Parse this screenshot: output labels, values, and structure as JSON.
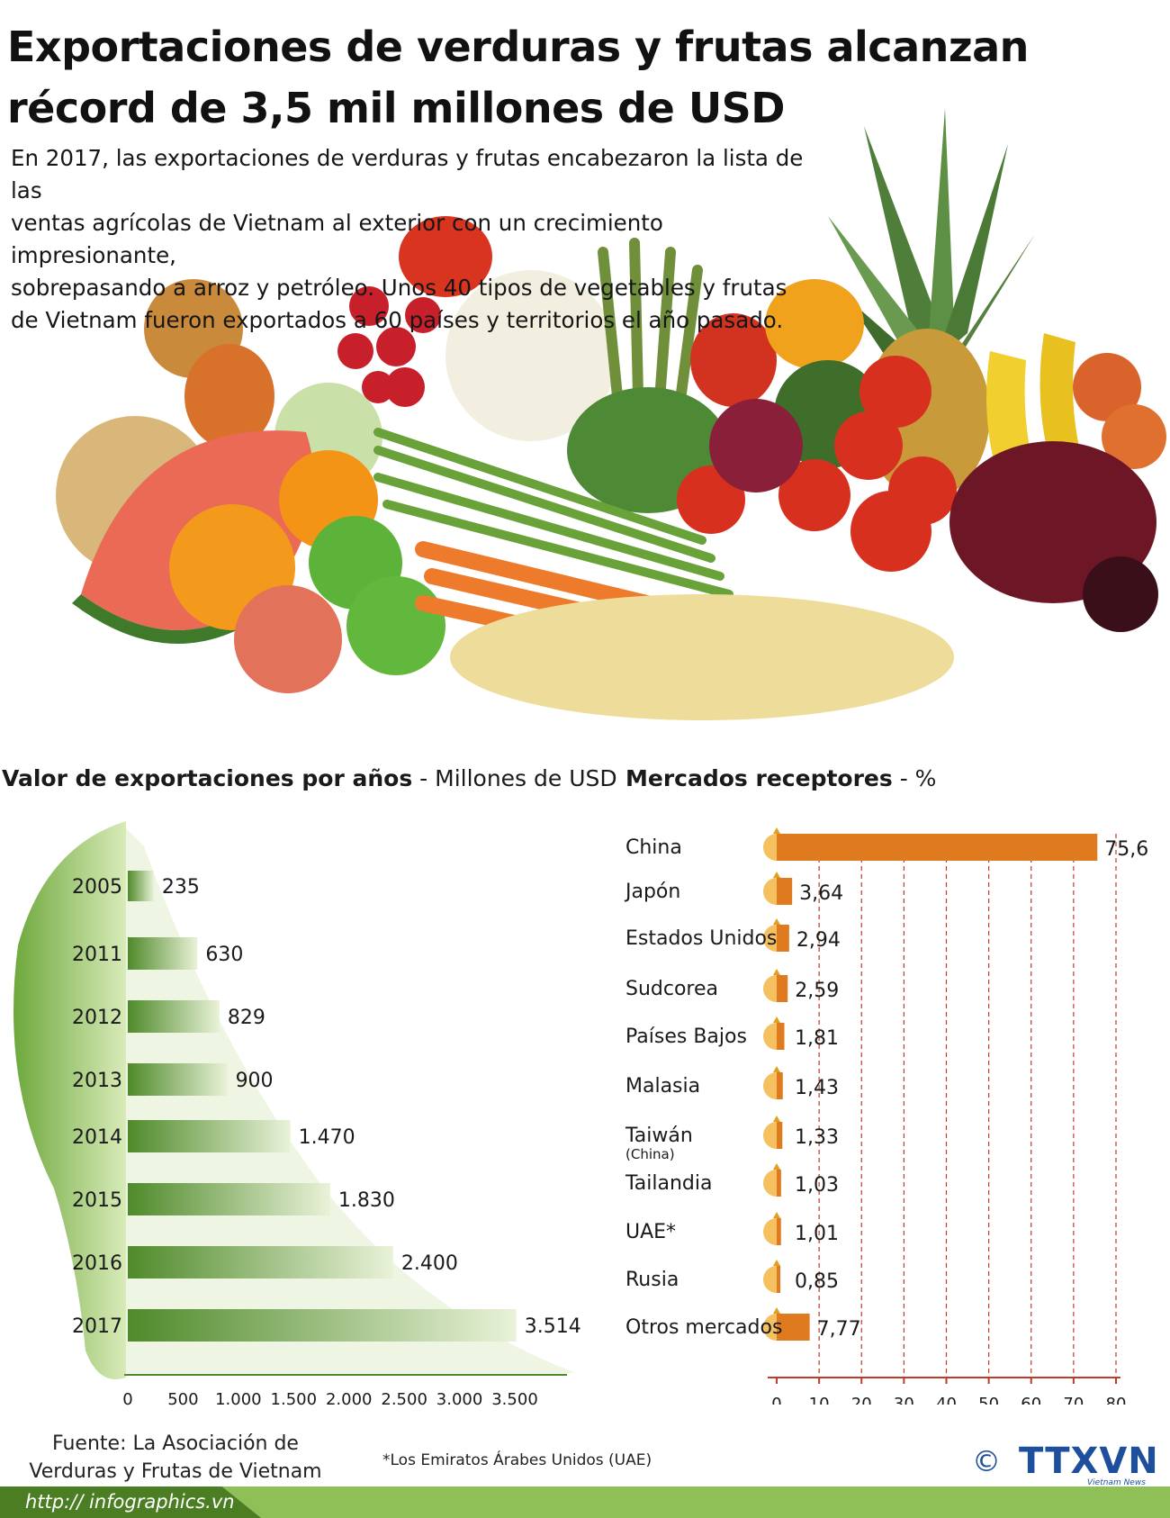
{
  "header": {
    "title_line1": "Exportaciones de verduras y frutas alcanzan",
    "title_line2": "récord de 3,5 mil millones de USD",
    "intro_lines": [
      "En 2017, las exportaciones de verduras y frutas  encabezaron  la lista de las",
      "ventas agrícolas de Vietnam al exterior con un crecimiento impresionante,",
      "sobrepasando a arroz y petróleo. Unos 40 tipos de vegetables y frutas",
      "de Vietnam fueron exportados a 60 países y territorios el año pasado."
    ]
  },
  "colors": {
    "green_dark": "#4f8a2a",
    "green_light": "#e9f2d8",
    "orange": "#e07a1f",
    "orange_light": "#f5c060",
    "red_axis": "#c0392b",
    "footer_green": "#8fbf57",
    "footer_dark": "#4b7d23",
    "logo_blue": "#1d4f9c"
  },
  "chart_data": [
    {
      "type": "bar",
      "orientation": "horizontal",
      "title_bold": "Valor de exportaciones por años",
      "title_unit": " - Millones de USD",
      "categories": [
        "2005",
        "2011",
        "2012",
        "2013",
        "2014",
        "2015",
        "2016",
        "2017"
      ],
      "values": [
        235,
        630,
        829,
        900,
        1470,
        1830,
        2400,
        3514
      ],
      "value_labels": [
        "235",
        "630",
        "829",
        "900",
        "1.470",
        "1.830",
        "2.400",
        "3.514"
      ],
      "xlim": [
        0,
        3500
      ],
      "xticks": [
        0,
        500,
        1000,
        1500,
        2000,
        2500,
        3000,
        3500
      ],
      "xtick_labels": [
        "0",
        "500",
        "1.000",
        "1.500",
        "2.000",
        "2.500",
        "3.000",
        "3.500"
      ]
    },
    {
      "type": "bar",
      "orientation": "horizontal",
      "title_bold": "Mercados receptores",
      "title_unit": " - %",
      "categories": [
        "China",
        "Japón",
        "Estados Unidos",
        "Sudcorea",
        "Países Bajos",
        "Malasia",
        "Taiwán",
        "Tailandia",
        "UAE*",
        "Rusia",
        "Otros mercados"
      ],
      "category_sublabels": [
        "",
        "",
        "",
        "",
        "",
        "",
        "(China)",
        "",
        "",
        "",
        ""
      ],
      "values": [
        75.6,
        3.64,
        2.94,
        2.59,
        1.81,
        1.43,
        1.33,
        1.03,
        1.01,
        0.85,
        7.77
      ],
      "value_labels": [
        "75,6",
        "3,64",
        "2,94",
        "2,59",
        "1,81",
        "1,43",
        "1,33",
        "1,03",
        "1,01",
        "0,85",
        "7,77"
      ],
      "xlim": [
        0,
        80
      ],
      "xticks": [
        0,
        10,
        20,
        30,
        40,
        50,
        60,
        70,
        80
      ],
      "xtick_labels": [
        "0",
        "10",
        "20",
        "30",
        "40",
        "50",
        "60",
        "70",
        "80"
      ],
      "grid": true
    }
  ],
  "footer": {
    "source_line1": "Fuente: La Asociación de",
    "source_line2": "Verduras y Frutas de Vietnam",
    "footnote": "*Los Emiratos Árabes Unidos (UAE)",
    "url": "http:// infographics.vn",
    "logo_copyright": "©",
    "logo_text": "TTXVN",
    "logo_sub": "Vietnam News Agency"
  }
}
